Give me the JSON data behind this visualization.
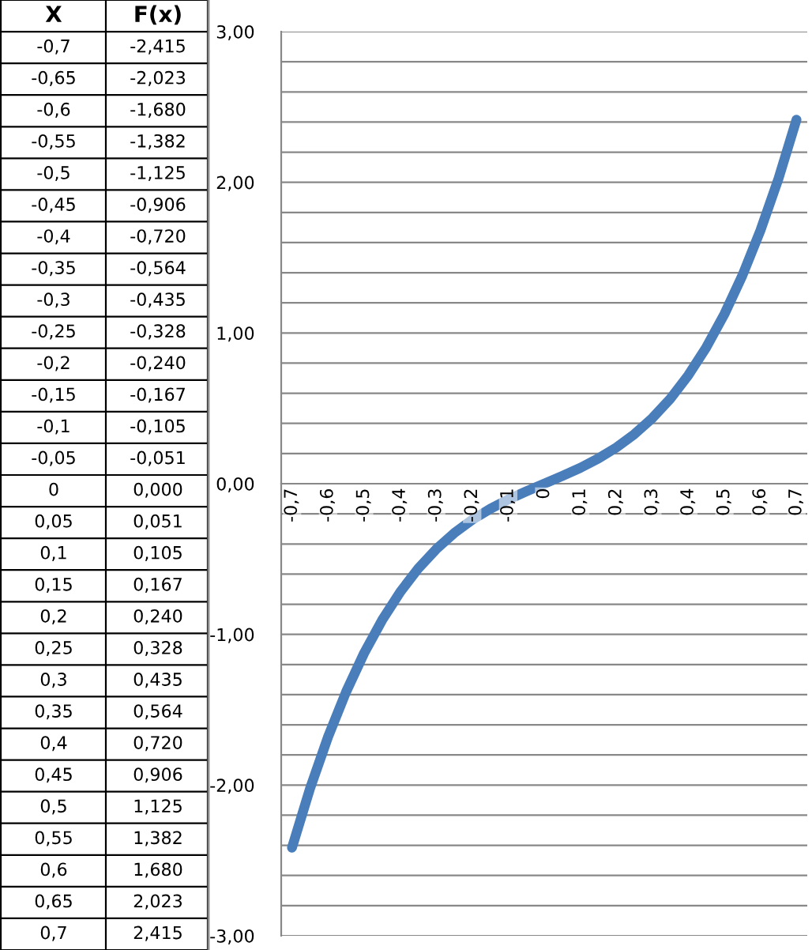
{
  "chart_data": {
    "type": "line",
    "annotations": [
      "X",
      "F(x)",
      "-0,7",
      "-2,415",
      "-0,65",
      "-2,023",
      "-0,6",
      "-1,680",
      "-0,55",
      "-1,382",
      "-0,5",
      "-1,125",
      "-0,45",
      "-0,906",
      "-0,4",
      "-0,720",
      "-0,35",
      "-0,564",
      "-0,3",
      "-0,435",
      "-0,25",
      "-0,328",
      "-0,2",
      "-0,240",
      "-0,15",
      "-0,167",
      "-0,1",
      "-0,105",
      "-0,05",
      "-0,051",
      "0",
      "0,000",
      "0,05",
      "0,051",
      "0,1",
      "0,105",
      "0,15",
      "0,167",
      "0,2",
      "0,240",
      "0,25",
      "0,328",
      "0,3",
      "0,435",
      "0,35",
      "0,564",
      "0,4",
      "0,720",
      "0,45",
      "0,906",
      "0,5",
      "1,125",
      "0,55",
      "1,382",
      "0,6",
      "1,680",
      "0,65",
      "2,023",
      "0,7",
      "2,415"
    ],
    "categories": [
      "-0,7",
      null,
      "-0,6",
      null,
      "-0,5",
      null,
      "-0,4",
      null,
      "-0,3",
      null,
      "-0,2",
      null,
      "-0,1",
      null,
      "0",
      null,
      "0,1",
      null,
      "0,2",
      null,
      "0,3",
      null,
      "0,4",
      null,
      "0,5",
      null,
      "0,6",
      null,
      "0,7"
    ],
    "series": [
      {
        "color": "#4a7ebb",
        "values": [
          -2.415,
          -2.023,
          -1.68,
          -1.382,
          -1.125,
          -0.906,
          -0.72,
          -0.564,
          -0.435,
          -0.328,
          -0.24,
          -0.167,
          -0.105,
          -0.051,
          0.0,
          0.051,
          0.105,
          0.167,
          0.24,
          0.328,
          0.435,
          0.564,
          0.72,
          0.906,
          1.125,
          1.382,
          1.68,
          2.023,
          2.415
        ]
      }
    ],
    "ylim": [
      -3,
      3
    ],
    "yticks": [
      {
        "value": -3,
        "label": "-3,00"
      },
      {
        "value": -2.8,
        "label": null
      },
      {
        "value": -2.6,
        "label": null
      },
      {
        "value": -2.4,
        "label": null
      },
      {
        "value": -2.2,
        "label": null
      },
      {
        "value": -2,
        "label": "-2,00"
      },
      {
        "value": -1.8,
        "label": null
      },
      {
        "value": -1.6,
        "label": null
      },
      {
        "value": -1.4,
        "label": null
      },
      {
        "value": -1.2,
        "label": null
      },
      {
        "value": -1,
        "label": "-1,00"
      },
      {
        "value": -0.8,
        "label": null
      },
      {
        "value": -0.6,
        "label": null
      },
      {
        "value": -0.4,
        "label": null
      },
      {
        "value": -0.2,
        "label": null
      },
      {
        "value": 0,
        "label": "0,00"
      },
      {
        "value": 0.2,
        "label": null
      },
      {
        "value": 0.4,
        "label": null
      },
      {
        "value": 0.6,
        "label": null
      },
      {
        "value": 0.8,
        "label": null
      },
      {
        "value": 1,
        "label": "1,00"
      },
      {
        "value": 1.2,
        "label": null
      },
      {
        "value": 1.4,
        "label": null
      },
      {
        "value": 1.6,
        "label": null
      },
      {
        "value": 1.8,
        "label": null
      },
      {
        "value": 2,
        "label": "2,00"
      },
      {
        "value": 2.2,
        "label": null
      },
      {
        "value": 2.4,
        "label": null
      },
      {
        "value": 2.6,
        "label": null
      },
      {
        "value": 2.8,
        "label": null
      },
      {
        "value": 3,
        "label": "3,00"
      }
    ],
    "grid": "y",
    "marker": "none",
    "line_style": "solid"
  }
}
